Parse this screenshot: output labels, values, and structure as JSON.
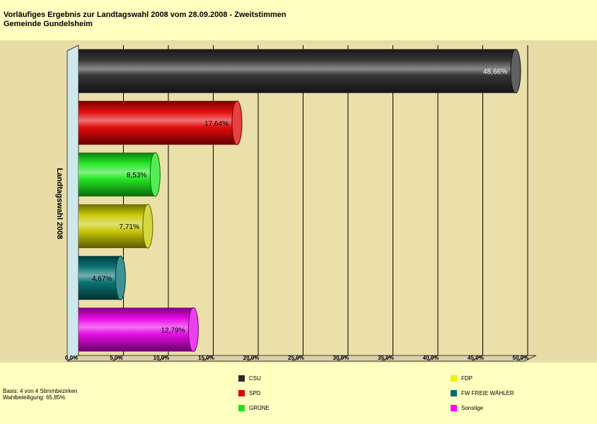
{
  "title": {
    "line1": "Vorläufiges Ergebnis zur Landtagswahl 2008 vom 28.09.2008 - Zweitstimmen",
    "line2": "Gemeinde Gundelsheim"
  },
  "footer": {
    "basis": "Basis: 4 von 4 Stimmbezirken",
    "turnout": "Wahlbeteiligung: 65,85%"
  },
  "legend": [
    {
      "label": "CSU",
      "color": "#2b2b2b"
    },
    {
      "label": "SPD",
      "color": "#e00000"
    },
    {
      "label": "GRÜNE",
      "color": "#19e619"
    },
    {
      "label": "FDP",
      "color": "#f0f000"
    },
    {
      "label": "FW FREIE WÄHLER",
      "color": "#006d6d"
    },
    {
      "label": "Sonstige",
      "color": "#ff00ff"
    }
  ],
  "chart_data": {
    "type": "bar",
    "orientation": "horizontal",
    "category_axis_label": "Landtagswahl 2008",
    "categories": [
      "CSU",
      "SPD",
      "GRÜNE",
      "FDP",
      "FW FREIE WÄHLER",
      "Sonstige"
    ],
    "values": [
      48.66,
      17.64,
      8.53,
      7.71,
      4.67,
      12.79
    ],
    "data_labels": [
      "48,66%",
      "17,64%",
      "8,53%",
      "7,71%",
      "4,67%",
      "12,79%"
    ],
    "colors": [
      "#2b2b2b",
      "#e00000",
      "#19e619",
      "#c8c800",
      "#006d6d",
      "#e600e6"
    ],
    "xlim": [
      0,
      50
    ],
    "x_ticks": [
      0,
      5,
      10,
      15,
      20,
      25,
      30,
      35,
      40,
      45,
      50
    ],
    "x_tick_labels": [
      "0,0%",
      "5,0%",
      "10,0%",
      "15,0%",
      "20,0%",
      "25,0%",
      "30,0%",
      "35,0%",
      "40,0%",
      "45,0%",
      "50,0%"
    ],
    "grid": true,
    "legend_position": "bottom"
  }
}
